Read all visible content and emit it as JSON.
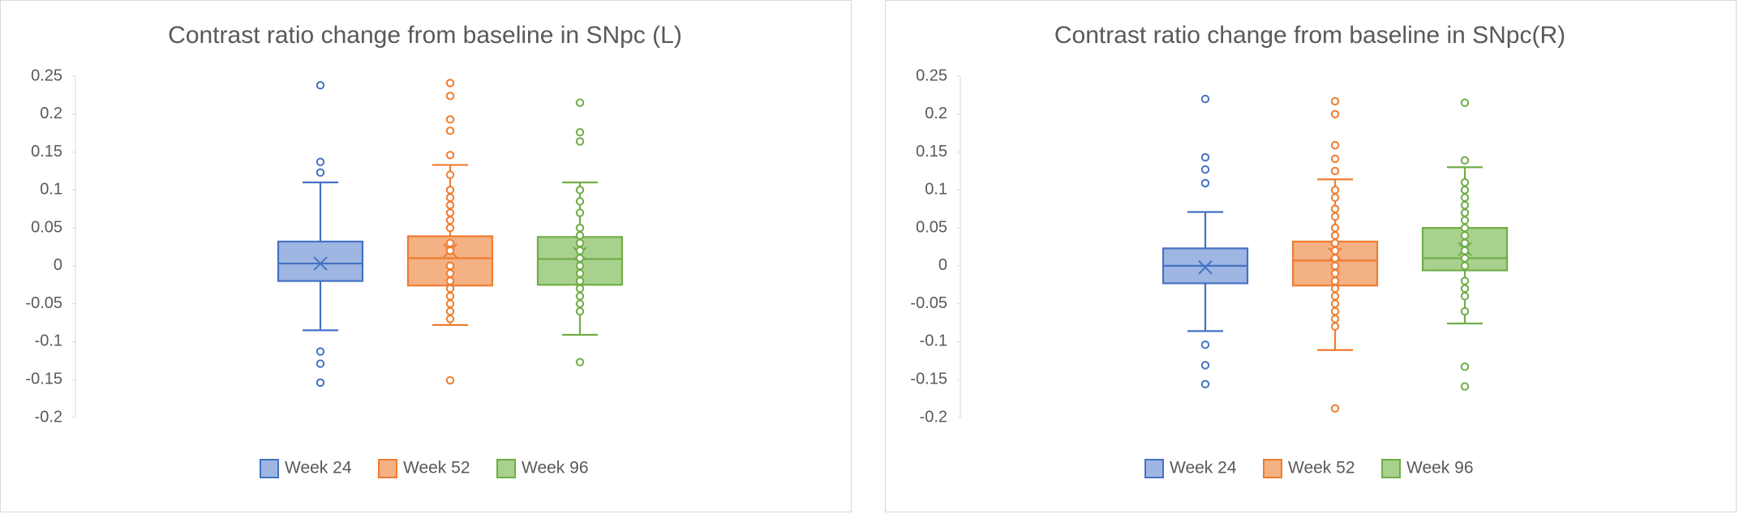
{
  "chart_data": [
    {
      "type": "box",
      "title": "Contrast ratio change from baseline in SNpc (L)",
      "ylim": [
        -0.2,
        0.25
      ],
      "yticks": [
        -0.2,
        -0.15,
        -0.1,
        -0.05,
        0,
        0.05,
        0.1,
        0.15,
        0.2,
        0.25
      ],
      "series": [
        {
          "name": "Week 24",
          "color": "#4472c4",
          "fill": "#9fb6e2",
          "whisker_low": -0.085,
          "q1": -0.02,
          "median": 0.003,
          "q3": 0.032,
          "whisker_high": 0.11,
          "mean": 0.003,
          "points": [
            0.238,
            0.137,
            0.123,
            -0.113,
            -0.129,
            -0.154
          ]
        },
        {
          "name": "Week 52",
          "color": "#ed7d31",
          "fill": "#f4b183",
          "whisker_low": -0.078,
          "q1": -0.026,
          "median": 0.01,
          "q3": 0.039,
          "whisker_high": 0.133,
          "mean": 0.02,
          "points": [
            0.241,
            0.224,
            0.193,
            0.178,
            0.146,
            0.12,
            0.1,
            0.09,
            0.08,
            0.07,
            0.06,
            0.05,
            0.03,
            0.02,
            0,
            -0.01,
            -0.02,
            -0.03,
            -0.04,
            -0.05,
            -0.06,
            -0.07,
            -0.151
          ]
        },
        {
          "name": "Week 96",
          "color": "#70ad47",
          "fill": "#a9d18e",
          "whisker_low": -0.091,
          "q1": -0.025,
          "median": 0.009,
          "q3": 0.038,
          "whisker_high": 0.11,
          "mean": 0.016,
          "points": [
            0.215,
            0.176,
            0.164,
            0.1,
            0.085,
            0.07,
            0.05,
            0.04,
            0.03,
            0.02,
            0.01,
            0,
            -0.01,
            -0.02,
            -0.03,
            -0.04,
            -0.05,
            -0.06,
            -0.127
          ]
        }
      ]
    },
    {
      "type": "box",
      "title": "Contrast ratio change from baseline in SNpc(R)",
      "ylim": [
        -0.2,
        0.25
      ],
      "yticks": [
        -0.2,
        -0.15,
        -0.1,
        -0.05,
        0,
        0.05,
        0.1,
        0.15,
        0.2,
        0.25
      ],
      "series": [
        {
          "name": "Week 24",
          "color": "#4472c4",
          "fill": "#9fb6e2",
          "whisker_low": -0.086,
          "q1": -0.023,
          "median": 0,
          "q3": 0.023,
          "whisker_high": 0.071,
          "mean": -0.002,
          "points": [
            0.22,
            0.143,
            0.127,
            0.109,
            -0.104,
            -0.131,
            -0.156
          ]
        },
        {
          "name": "Week 52",
          "color": "#ed7d31",
          "fill": "#f4b183",
          "whisker_low": -0.111,
          "q1": -0.026,
          "median": 0.007,
          "q3": 0.032,
          "whisker_high": 0.114,
          "mean": 0.015,
          "points": [
            0.217,
            0.2,
            0.159,
            0.141,
            0.125,
            0.1,
            0.09,
            0.075,
            0.065,
            0.05,
            0.04,
            0.03,
            0.02,
            0.01,
            0,
            -0.01,
            -0.02,
            -0.03,
            -0.04,
            -0.05,
            -0.06,
            -0.07,
            -0.08,
            -0.188
          ]
        },
        {
          "name": "Week 96",
          "color": "#70ad47",
          "fill": "#a9d18e",
          "whisker_low": -0.076,
          "q1": -0.006,
          "median": 0.01,
          "q3": 0.05,
          "whisker_high": 0.13,
          "mean": 0.022,
          "points": [
            0.215,
            0.139,
            0.11,
            0.1,
            0.09,
            0.08,
            0.07,
            0.06,
            0.05,
            0.04,
            0.03,
            0.02,
            0.01,
            0,
            -0.02,
            -0.03,
            -0.04,
            -0.06,
            -0.133,
            -0.159
          ]
        }
      ]
    }
  ]
}
